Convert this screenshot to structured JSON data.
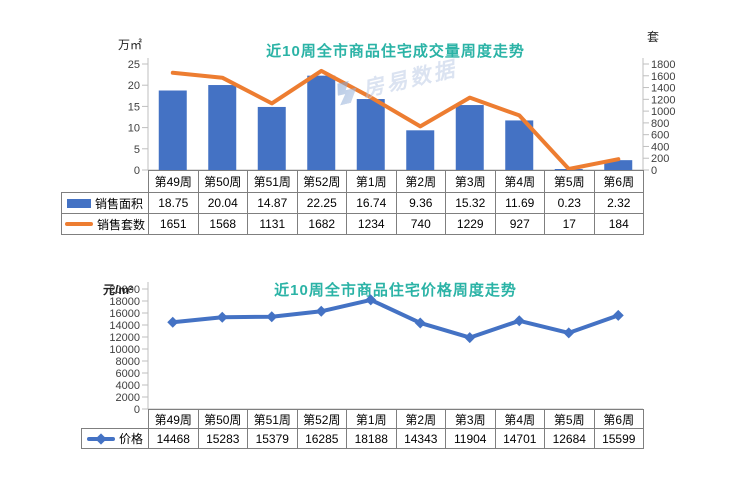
{
  "colors": {
    "bar_blue": "#4472C4",
    "line_orange": "#ED7D31",
    "price_blue": "#4472C4",
    "title_teal": "#2BB3A6",
    "axis_line": "#BFBFBF",
    "tick_text": "#404040",
    "table_border": "#7F7F7F"
  },
  "watermark": {
    "text": "房易数据"
  },
  "chart_data": [
    {
      "type": "bar",
      "title": "近10周全市商品住宅成交量周度走势",
      "categories": [
        "第49周",
        "第50周",
        "第51周",
        "第52周",
        "第1周",
        "第2周",
        "第3周",
        "第4周",
        "第5周",
        "第6周"
      ],
      "series": [
        {
          "name": "销售面积",
          "kind": "bar",
          "axis": "left",
          "color": "#4472C4",
          "values": [
            18.75,
            20.04,
            14.87,
            22.25,
            16.74,
            9.36,
            15.32,
            11.69,
            0.23,
            2.32
          ]
        },
        {
          "name": "销售套数",
          "kind": "line",
          "axis": "right",
          "color": "#ED7D31",
          "values": [
            1651,
            1568,
            1131,
            1682,
            1234,
            740,
            1229,
            927,
            17,
            184
          ]
        }
      ],
      "left_axis": {
        "unit": "万㎡",
        "min": 0,
        "max": 25,
        "step": 5,
        "ticks": [
          0,
          5,
          10,
          15,
          20,
          25
        ]
      },
      "right_axis": {
        "unit": "套",
        "min": 0,
        "max": 1800,
        "step": 200,
        "ticks": [
          0,
          200,
          400,
          600,
          800,
          1000,
          1200,
          1400,
          1600,
          1800
        ]
      },
      "grid": false,
      "legend_position": "table-left"
    },
    {
      "type": "line",
      "title": "近10周全市商品住宅价格周度走势",
      "categories": [
        "第49周",
        "第50周",
        "第51周",
        "第52周",
        "第1周",
        "第2周",
        "第3周",
        "第4周",
        "第5周",
        "第6周"
      ],
      "series": [
        {
          "name": "价格",
          "kind": "line",
          "axis": "left",
          "color": "#4472C4",
          "marker": "diamond",
          "values": [
            14468,
            15283,
            15379,
            16285,
            18188,
            14343,
            11904,
            14701,
            12684,
            15599
          ]
        }
      ],
      "left_axis": {
        "unit": "元/m²",
        "min": 0,
        "max": 20000,
        "step": 2000,
        "ticks": [
          0,
          2000,
          4000,
          6000,
          8000,
          10000,
          12000,
          14000,
          16000,
          18000,
          20000
        ]
      },
      "grid": false,
      "legend_position": "table-left"
    }
  ]
}
